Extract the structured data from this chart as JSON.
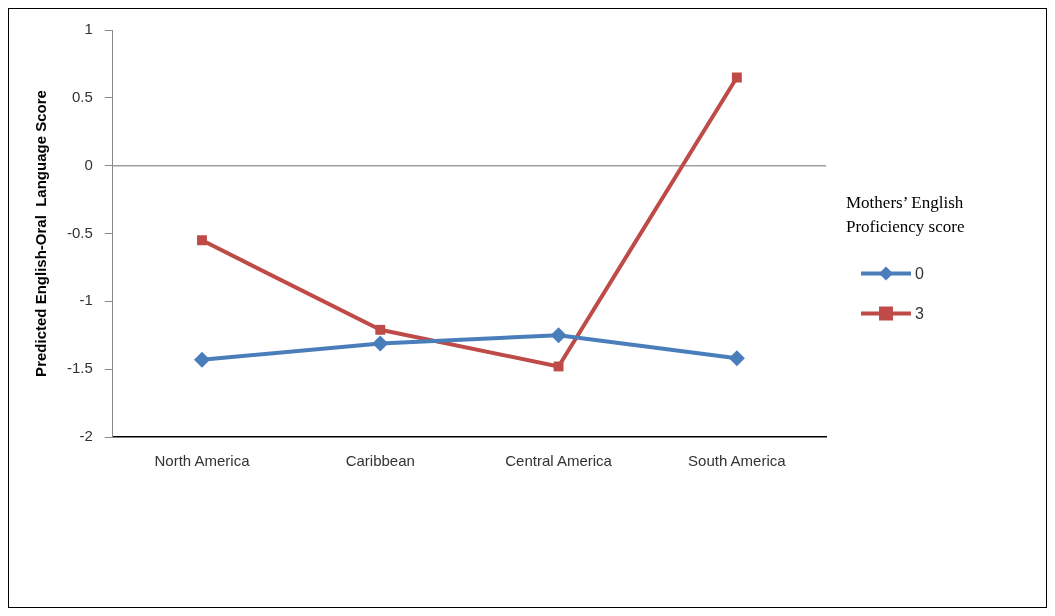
{
  "chart_data": {
    "type": "line",
    "ylabel": "Predicted English-Oral  Language Score",
    "legend_title": "Mothers’ English Proficiency score",
    "categories": [
      "North America",
      "Caribbean",
      "Central America",
      "South America"
    ],
    "series": [
      {
        "name": "0",
        "color": "#4a7ebb",
        "values": [
          -1.43,
          -1.31,
          -1.25,
          -1.42
        ],
        "marker": "diamond"
      },
      {
        "name": "3",
        "color": "#be4b48",
        "values": [
          -0.55,
          -1.21,
          -1.48,
          0.65
        ],
        "marker": "square"
      }
    ],
    "ylim": [
      -2,
      1
    ],
    "yticks": [
      -2,
      -1.5,
      -1,
      -0.5,
      0,
      0.5,
      1
    ],
    "grid": false,
    "legend": "right",
    "ref_lines": [
      {
        "axis": "y",
        "value": 0,
        "color": "#a0a0a0"
      }
    ]
  }
}
